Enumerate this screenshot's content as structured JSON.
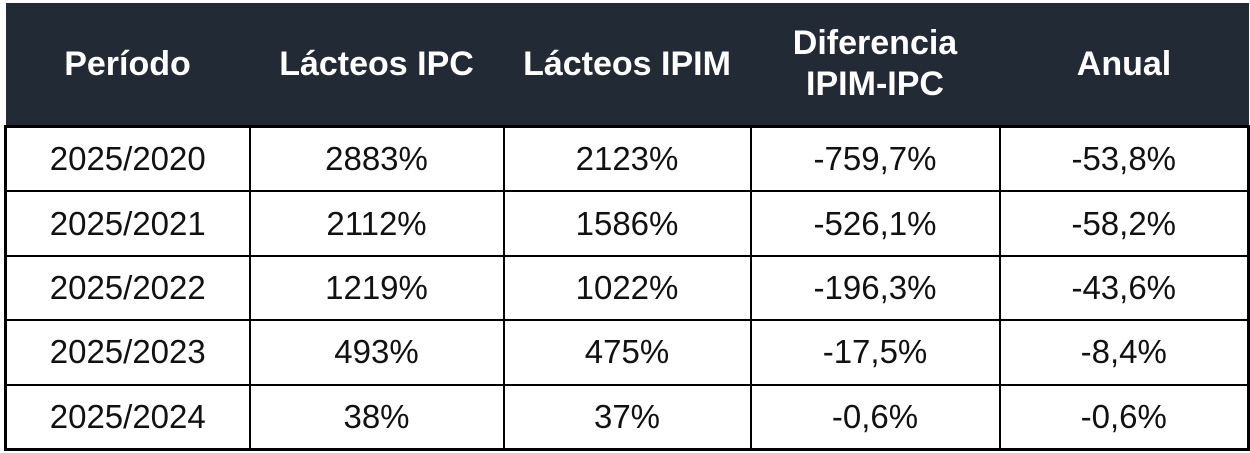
{
  "chart_data": {
    "type": "table",
    "columns": [
      "Período",
      "Lácteos IPC",
      "Lácteos IPIM",
      "Diferencia IPIM-IPC",
      "Anual"
    ],
    "rows": [
      [
        "2025/2020",
        "2883%",
        "2123%",
        "-759,7%",
        "-53,8%"
      ],
      [
        "2025/2021",
        "2112%",
        "1586%",
        "-526,1%",
        "-58,2%"
      ],
      [
        "2025/2022",
        "1219%",
        "1022%",
        "-196,3%",
        "-43,6%"
      ],
      [
        "2025/2023",
        "493%",
        "475%",
        "-17,5%",
        "-8,4%"
      ],
      [
        "2025/2024",
        "38%",
        "37%",
        "-0,6%",
        "-0,6%"
      ]
    ],
    "header_background": "#222a35",
    "header_text_color": "#ffffff"
  }
}
